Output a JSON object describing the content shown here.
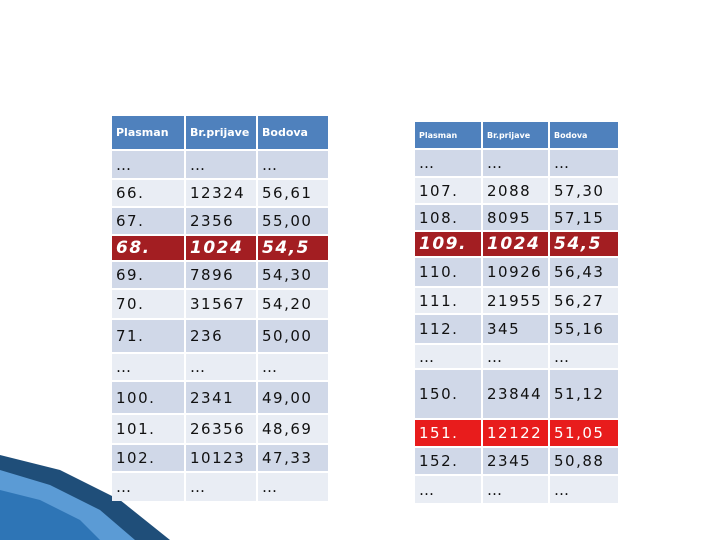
{
  "tables": [
    {
      "header": [
        "Plasman",
        "Br.prijave",
        "Bodova"
      ],
      "rows": [
        [
          "…",
          "…",
          "…"
        ],
        [
          "66.",
          "12324",
          "56,61"
        ],
        [
          "67.",
          "2356",
          "55,00"
        ],
        [
          "68.",
          "1024",
          "54,5"
        ],
        [
          "69.",
          "7896",
          "54,30"
        ],
        [
          "70.",
          "31567",
          "54,20"
        ],
        [
          "71.",
          "236",
          "50,00"
        ],
        [
          "…",
          "…",
          "…"
        ],
        [
          "100.",
          "2341",
          "49,00"
        ],
        [
          "101.",
          "26356",
          "48,69"
        ],
        [
          "102.",
          "10123",
          "47,33"
        ],
        [
          "…",
          "…",
          "…"
        ]
      ]
    },
    {
      "header": [
        "Plasman",
        "Br.prijave",
        "Bodova"
      ],
      "rows": [
        [
          "…",
          "…",
          "…"
        ],
        [
          "107.",
          "2088",
          "57,30"
        ],
        [
          "108.",
          "8095",
          "57,15"
        ],
        [
          "109.",
          "1024",
          "54,5"
        ],
        [
          "110.",
          "10926",
          "56,43"
        ],
        [
          "111.",
          "21955",
          "56,27"
        ],
        [
          "112.",
          "345",
          "55,16"
        ],
        [
          "…",
          "…",
          "…"
        ],
        [
          "150.",
          "23844",
          "51,12"
        ],
        [
          "151.",
          "12122",
          "51,05"
        ],
        [
          "152.",
          "2345",
          "50,88"
        ],
        [
          "…",
          "…",
          "…"
        ]
      ]
    }
  ]
}
